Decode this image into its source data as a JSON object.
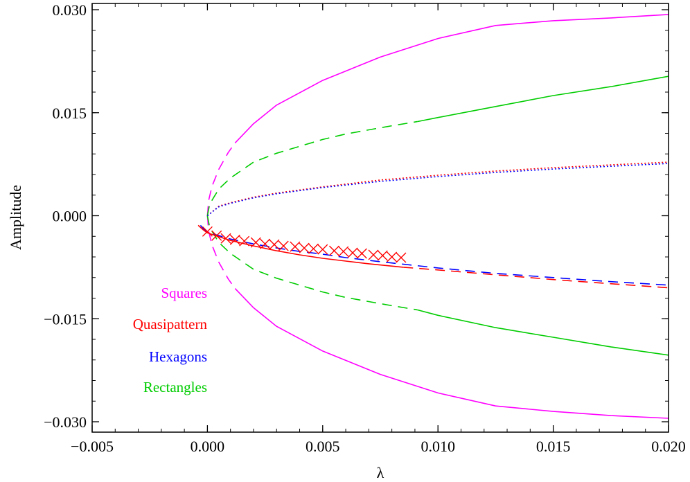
{
  "chart_data": {
    "type": "line",
    "xlabel": "λ",
    "ylabel": "Amplitude",
    "xlim": [
      -0.005,
      0.02
    ],
    "ylim": [
      -0.0305,
      0.0305
    ],
    "x_ticks": [
      -0.005,
      0.0,
      0.005,
      0.01,
      0.015,
      0.02
    ],
    "x_tick_labels": [
      "−0.005",
      "0.000",
      "0.005",
      "0.010",
      "0.015",
      "0.020"
    ],
    "y_ticks": [
      -0.03,
      -0.015,
      0.0,
      0.015,
      0.03
    ],
    "y_tick_labels": [
      "−0.030",
      "−0.015",
      "0.000",
      "0.015",
      "0.030"
    ],
    "grid": false,
    "legend_position": "bottom-left",
    "legend": [
      {
        "label": "Squares",
        "color": "#ff00ff"
      },
      {
        "label": "Quasipattern",
        "color": "#ff0000"
      },
      {
        "label": "Hexagons",
        "color": "#0000ff"
      },
      {
        "label": "Rectangles",
        "color": "#00cc00"
      }
    ],
    "series": [
      {
        "name": "Squares",
        "color": "#ff00ff",
        "branch": "upper",
        "segments": [
          {
            "style": "dashed",
            "x": [
              0.0,
              5e-05,
              0.0002,
              0.0005,
              0.0009,
              0.0012
            ],
            "y": [
              0.0,
              0.0022,
              0.0043,
              0.0068,
              0.0092,
              0.0106
            ]
          },
          {
            "style": "solid",
            "x": [
              0.0012,
              0.002,
              0.003,
              0.005,
              0.0075,
              0.01,
              0.0125,
              0.015,
              0.0175,
              0.02
            ],
            "y": [
              0.0106,
              0.0134,
              0.0161,
              0.0197,
              0.0231,
              0.0258,
              0.0277,
              0.0284,
              0.0288,
              0.0293
            ]
          }
        ]
      },
      {
        "name": "Squares",
        "color": "#ff00ff",
        "branch": "lower",
        "segments": [
          {
            "style": "dashed",
            "x": [
              0.0,
              5e-05,
              0.0002,
              0.0005,
              0.0009,
              0.0012
            ],
            "y": [
              0.0,
              -0.0022,
              -0.0043,
              -0.0068,
              -0.0092,
              -0.0106
            ]
          },
          {
            "style": "solid",
            "x": [
              0.0012,
              0.002,
              0.003,
              0.005,
              0.0075,
              0.01,
              0.0125,
              0.015,
              0.0175,
              0.02
            ],
            "y": [
              -0.0106,
              -0.0134,
              -0.0161,
              -0.0197,
              -0.0231,
              -0.0258,
              -0.0277,
              -0.0285,
              -0.0291,
              -0.0295
            ]
          }
        ]
      },
      {
        "name": "Rectangles",
        "color": "#00cc00",
        "branch": "upper",
        "segments": [
          {
            "style": "dashed",
            "x": [
              0.0,
              0.0001,
              0.0005,
              0.001,
              0.002,
              0.003,
              0.004,
              0.005,
              0.006,
              0.007,
              0.008,
              0.0091
            ],
            "y": [
              0.0,
              0.0017,
              0.0039,
              0.0055,
              0.0078,
              0.0091,
              0.0101,
              0.0111,
              0.0119,
              0.0125,
              0.0131,
              0.0137
            ]
          },
          {
            "style": "solid",
            "x": [
              0.0091,
              0.01,
              0.0125,
              0.015,
              0.0175,
              0.02
            ],
            "y": [
              0.0137,
              0.0143,
              0.0159,
              0.0175,
              0.0188,
              0.0203
            ]
          }
        ]
      },
      {
        "name": "Rectangles",
        "color": "#00cc00",
        "branch": "lower",
        "segments": [
          {
            "style": "dashed",
            "x": [
              0.0,
              0.0001,
              0.0005,
              0.001,
              0.002,
              0.003,
              0.004,
              0.005,
              0.006,
              0.007,
              0.008,
              0.0091
            ],
            "y": [
              0.0,
              -0.0017,
              -0.0039,
              -0.0055,
              -0.0078,
              -0.0091,
              -0.0101,
              -0.0111,
              -0.0119,
              -0.0125,
              -0.0131,
              -0.0137
            ]
          },
          {
            "style": "solid",
            "x": [
              0.0091,
              0.01,
              0.0125,
              0.015,
              0.0175,
              0.02
            ],
            "y": [
              -0.0137,
              -0.0145,
              -0.0163,
              -0.0177,
              -0.0191,
              -0.0203
            ]
          }
        ]
      },
      {
        "name": "Quasipattern",
        "color": "#ff0000",
        "branch": "dotted-upper",
        "segments": [
          {
            "style": "dotted",
            "x": [
              0.0,
              0.0005,
              0.001,
              0.002,
              0.003,
              0.005,
              0.0075,
              0.01,
              0.0125,
              0.015,
              0.0175,
              0.02
            ],
            "y": [
              0.0,
              0.0014,
              0.0019,
              0.0027,
              0.0033,
              0.0042,
              0.0052,
              0.0059,
              0.0065,
              0.007,
              0.0074,
              0.0078
            ]
          }
        ]
      },
      {
        "name": "Hexagons",
        "color": "#0000ff",
        "branch": "dotted-upper",
        "segments": [
          {
            "style": "dotted",
            "x": [
              0.0,
              0.0005,
              0.001,
              0.002,
              0.003,
              0.005,
              0.0075,
              0.01,
              0.0125,
              0.015,
              0.0175,
              0.02
            ],
            "y": [
              0.0,
              0.0013,
              0.0018,
              0.0026,
              0.0032,
              0.0041,
              0.005,
              0.0057,
              0.0063,
              0.0068,
              0.0072,
              0.0076
            ]
          }
        ]
      },
      {
        "name": "Hexagons",
        "color": "#0000ff",
        "branch": "lower",
        "segments": [
          {
            "style": "dashed",
            "x": [
              -0.0003,
              -0.0002,
              0.0,
              0.001,
              0.002,
              0.003,
              0.004,
              0.005,
              0.006,
              0.0075,
              0.01,
              0.0125,
              0.015,
              0.0175,
              0.02
            ],
            "y": [
              -0.0014,
              -0.0018,
              -0.0024,
              -0.0034,
              -0.0041,
              -0.0047,
              -0.0052,
              -0.0056,
              -0.0061,
              -0.0067,
              -0.0076,
              -0.0084,
              -0.009,
              -0.0096,
              -0.0101
            ]
          }
        ]
      },
      {
        "name": "Quasipattern",
        "color": "#ff0000",
        "branch": "lower",
        "segments": [
          {
            "style": "solid",
            "x": [
              -0.0004,
              -0.0002,
              0.0,
              0.001,
              0.002,
              0.003,
              0.004,
              0.005,
              0.006,
              0.007,
              0.0085
            ],
            "y": [
              -0.0014,
              -0.002,
              -0.0025,
              -0.0036,
              -0.0044,
              -0.0051,
              -0.0057,
              -0.0062,
              -0.0066,
              -0.007,
              -0.0075
            ]
          },
          {
            "style": "dashed",
            "x": [
              0.0085,
              0.01,
              0.0125,
              0.015,
              0.0175,
              0.02
            ],
            "y": [
              -0.0075,
              -0.0079,
              -0.0086,
              -0.0093,
              -0.0099,
              -0.0105
            ]
          }
        ]
      }
    ],
    "markers": {
      "name": "Quasipattern",
      "symbol": "x",
      "color": "#ff0000",
      "x": [
        0.0,
        0.0004,
        0.0008,
        0.0012,
        0.0016,
        0.0021,
        0.0025,
        0.0029,
        0.0033,
        0.0038,
        0.0042,
        0.0046,
        0.005,
        0.0055,
        0.0059,
        0.0063,
        0.0067,
        0.0072,
        0.0076,
        0.008,
        0.0084
      ],
      "y": [
        -0.0023,
        -0.0029,
        -0.0033,
        -0.0035,
        -0.0037,
        -0.0039,
        -0.0041,
        -0.0042,
        -0.0044,
        -0.0045,
        -0.0047,
        -0.0048,
        -0.0049,
        -0.0051,
        -0.0052,
        -0.0054,
        -0.0055,
        -0.0057,
        -0.0058,
        -0.006,
        -0.0061
      ]
    }
  }
}
